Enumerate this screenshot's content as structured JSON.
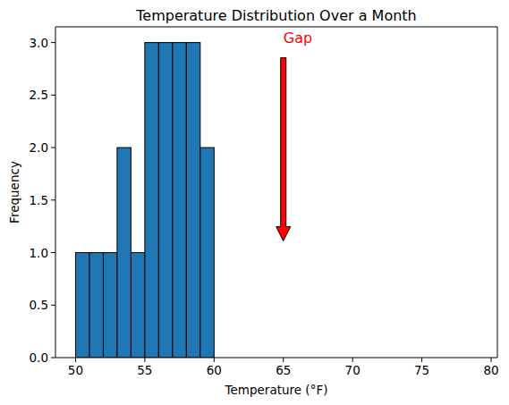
{
  "chart_data": {
    "type": "histogram",
    "title": "Temperature Distribution Over a Month",
    "x_label": "Temperature (°F)",
    "y_label": "Frequency",
    "bins": [
      50,
      51,
      52,
      53,
      54,
      55,
      56,
      57,
      58,
      59,
      60,
      61,
      62,
      63,
      64,
      65,
      66,
      67,
      68,
      69,
      70,
      71,
      72,
      73,
      74,
      75,
      76,
      77,
      78,
      79
    ],
    "values": [
      1,
      1,
      1,
      2,
      1,
      3,
      3,
      3,
      3,
      2,
      0,
      0,
      0,
      0,
      0,
      0,
      0,
      0,
      0,
      0,
      0,
      0,
      0,
      0,
      0,
      0,
      0,
      0,
      0
    ],
    "color": "#1f77b4",
    "xlim": [
      48.55,
      80.45
    ],
    "xticks": [
      50,
      55,
      60,
      65,
      70,
      75,
      80
    ],
    "ylim": [
      0,
      3.15
    ],
    "yticks": [
      {
        "value": 0,
        "label": "0.0"
      },
      0.5,
      {
        "value": 1,
        "label": "1.0"
      },
      1.5,
      {
        "value": 2,
        "label": "2.0"
      },
      2.5,
      {
        "value": 3,
        "label": "3.0"
      }
    ],
    "grid": false,
    "annotations": [
      {
        "text": "Gap",
        "x": 65,
        "y": 3,
        "xy": [
          65,
          1
        ],
        "color": "red"
      }
    ]
  }
}
